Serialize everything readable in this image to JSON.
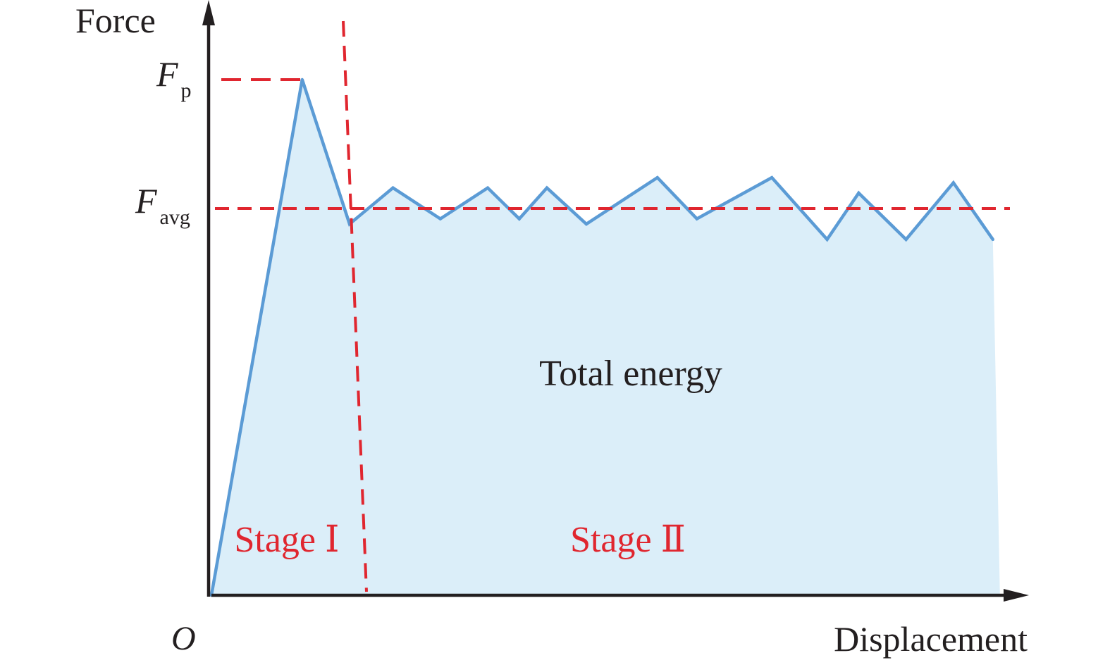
{
  "colors": {
    "curve": "#5b9bd5",
    "fill": "#dbeef9",
    "reference": "#e0262f",
    "axis": "#231f20",
    "text": "#231f20"
  },
  "chart_data": {
    "type": "area",
    "title": "",
    "xlabel": "Displacement",
    "ylabel": "Force",
    "origin_label": "O",
    "xlim": [
      0,
      100
    ],
    "ylim": [
      0,
      100
    ],
    "series": [
      {
        "x": [
          0,
          11.5,
          17.5,
          23,
          29,
          35,
          39,
          42.5,
          47.5,
          56.5,
          61.5,
          71,
          78,
          82,
          88,
          94,
          99
        ],
        "y": [
          0,
          100,
          72,
          79,
          73,
          79,
          73,
          79,
          72,
          81,
          73,
          81,
          69,
          78,
          69,
          80,
          69
        ]
      }
    ],
    "reference_lines": {
      "peak": {
        "symbol": "F",
        "subscript": "p",
        "y": 100
      },
      "average": {
        "symbol": "F",
        "subscript": "avg",
        "y": 75
      },
      "stage_divider_x": 17.5
    },
    "annotations": {
      "area_label": "Total energy",
      "stage_1": "Stage Ⅰ",
      "stage_2": "Stage Ⅱ"
    }
  }
}
